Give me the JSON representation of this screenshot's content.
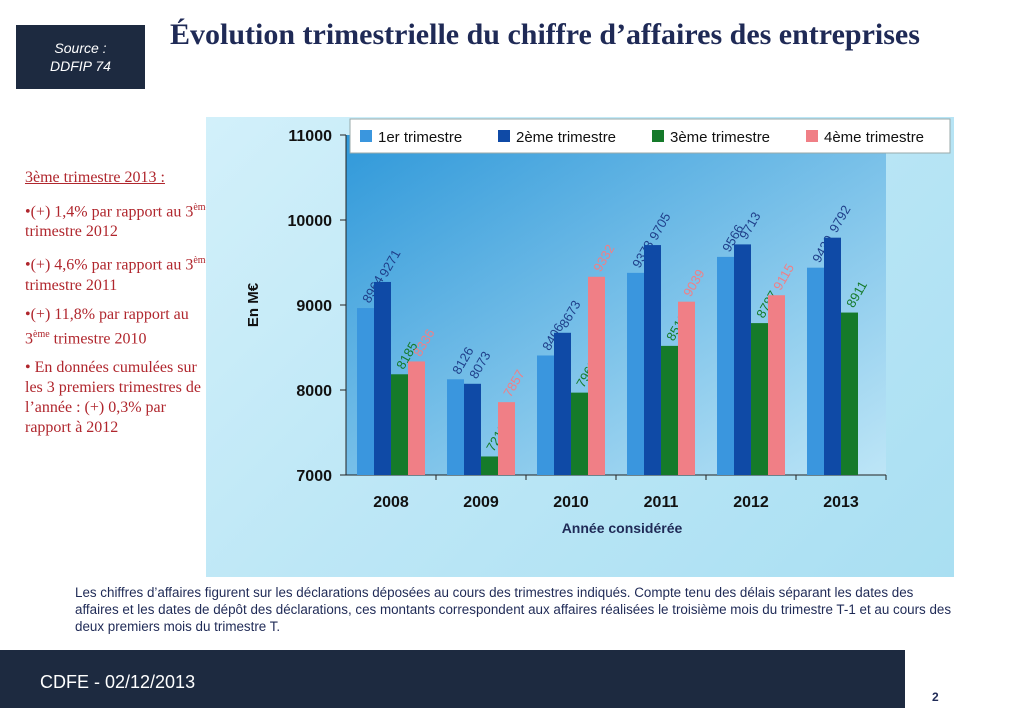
{
  "source": {
    "line1": "Source :",
    "line2": "DDFIP 74"
  },
  "title": "Évolution trimestrielle du chiffre d’affaires des entreprises",
  "sidebar": {
    "heading": "3ème trimestre 2013 :",
    "bullets": [
      {
        "pre": "•(+) 1,4% par rapport au 3",
        "sup": "ème",
        "post": " trimestre 2012"
      },
      {
        "pre": "•(+) 4,6% par rapport au 3",
        "sup": "ème",
        "post": " trimestre 2011"
      },
      {
        "pre": "•(+) 11,8% par rapport au 3",
        "sup": "ème",
        "post": " trimestre 2010"
      },
      {
        "pre": "• En données cumulées sur les 3 premiers trimestres de l’année : (+) 0,3% par rapport à 2012",
        "sup": "",
        "post": ""
      }
    ]
  },
  "chart_data": {
    "type": "bar",
    "categories": [
      "2008",
      "2009",
      "2010",
      "2011",
      "2012",
      "2013"
    ],
    "series": [
      {
        "name": "1er trimestre",
        "color": "#3a96de",
        "values": [
          8964,
          8126,
          8406,
          9378,
          9566,
          9439
        ]
      },
      {
        "name": "2ème trimestre",
        "color": "#0f4aa6",
        "values": [
          9271,
          8073,
          8673,
          9705,
          9713,
          9792
        ]
      },
      {
        "name": "3ème trimestre",
        "color": "#157a2a",
        "values": [
          8185,
          7218,
          7969,
          8519,
          8787,
          8911
        ]
      },
      {
        "name": "4ème trimestre",
        "color": "#f07f86",
        "values": [
          8336,
          7857,
          9332,
          9039,
          9115,
          null
        ]
      }
    ],
    "label_colors": [
      "#1f3f8a",
      "#1f3f8a",
      "#157a2a",
      "#f07f86"
    ],
    "ylim": [
      7000,
      11000
    ],
    "yticks": [
      "7000",
      "8000",
      "9000",
      "10000",
      "11000"
    ],
    "ylabel": "En M€",
    "xlabel": "Année considérée",
    "legend_position": "top"
  },
  "note": "Les chiffres d’affaires figurent sur les déclarations déposées au cours des trimestres indiqués. Compte tenu des délais séparant les dates des affaires et les dates de dépôt des déclarations, ces montants correspondent aux affaires réalisées le troisième mois du trimestre T-1 et au cours des deux premiers mois du trimestre T.",
  "footer": "CDFE - 02/12/2013",
  "page_number": "2"
}
